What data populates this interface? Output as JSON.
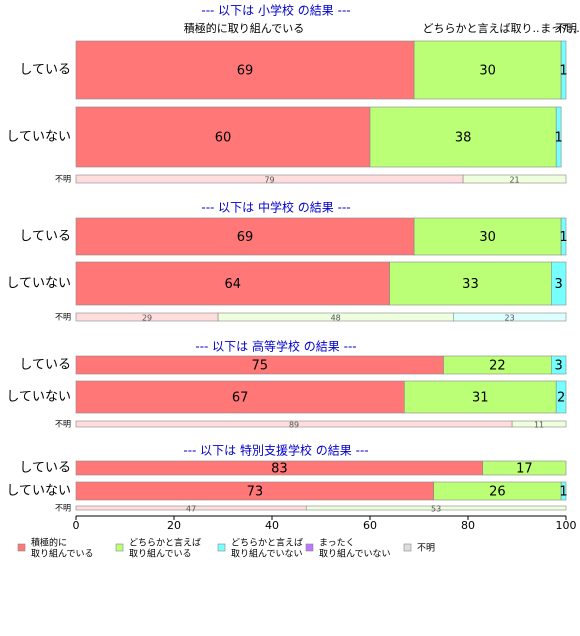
{
  "chart_data": {
    "type": "bar",
    "orientation": "horizontal",
    "stacked": true,
    "xlim": [
      0,
      100
    ],
    "xticks": [
      0,
      20,
      40,
      60,
      80,
      100
    ],
    "header_labels": [
      "積極的に取り組んでいる",
      "どちらかと言えば取り..",
      "まった..",
      "不明"
    ],
    "series": [
      {
        "name": [
          "積極的に",
          "取り組んでいる"
        ],
        "color": "#ff7777",
        "light_color": "#ffdddd"
      },
      {
        "name": [
          "どちらかと言えば",
          "取り組んでいる"
        ],
        "color": "#bbff77",
        "light_color": "#eeffdd"
      },
      {
        "name": [
          "どちらかと言えば",
          "取り組んでいない"
        ],
        "color": "#77ffff",
        "light_color": "#ddffff"
      },
      {
        "name": [
          "まったく",
          "取り組んでいない"
        ],
        "color": "#bb77ff",
        "light_color": "#eeddff"
      },
      {
        "name": [
          "不明"
        ],
        "color": "#dddddd",
        "light_color": "#f4f4f4"
      }
    ],
    "panels": [
      {
        "title": "--- 以下は 小学校 の結果 ---",
        "categories": [
          "している",
          "していない",
          "不明"
        ],
        "values": [
          [
            69,
            30,
            1,
            0,
            0
          ],
          [
            60,
            38,
            1,
            0,
            0
          ],
          [
            79,
            21,
            0,
            0,
            0
          ]
        ]
      },
      {
        "title": "--- 以下は 中学校 の結果 ---",
        "categories": [
          "している",
          "していない",
          "不明"
        ],
        "values": [
          [
            69,
            30,
            1,
            0,
            0
          ],
          [
            64,
            33,
            3,
            0,
            0
          ],
          [
            29,
            48,
            23,
            0,
            0
          ]
        ]
      },
      {
        "title": "--- 以下は 高等学校 の結果 ---",
        "categories": [
          "している",
          "していない",
          "不明"
        ],
        "values": [
          [
            75,
            22,
            3,
            0,
            0
          ],
          [
            67,
            31,
            2,
            0,
            0
          ],
          [
            89,
            11,
            0,
            0,
            0
          ]
        ]
      },
      {
        "title": "--- 以下は 特別支援学校 の結果 ---",
        "categories": [
          "している",
          "していない",
          "不明"
        ],
        "values": [
          [
            83,
            17,
            0,
            0,
            0
          ],
          [
            73,
            26,
            1,
            0,
            0
          ],
          [
            47,
            53,
            0,
            0,
            0
          ]
        ]
      }
    ]
  }
}
